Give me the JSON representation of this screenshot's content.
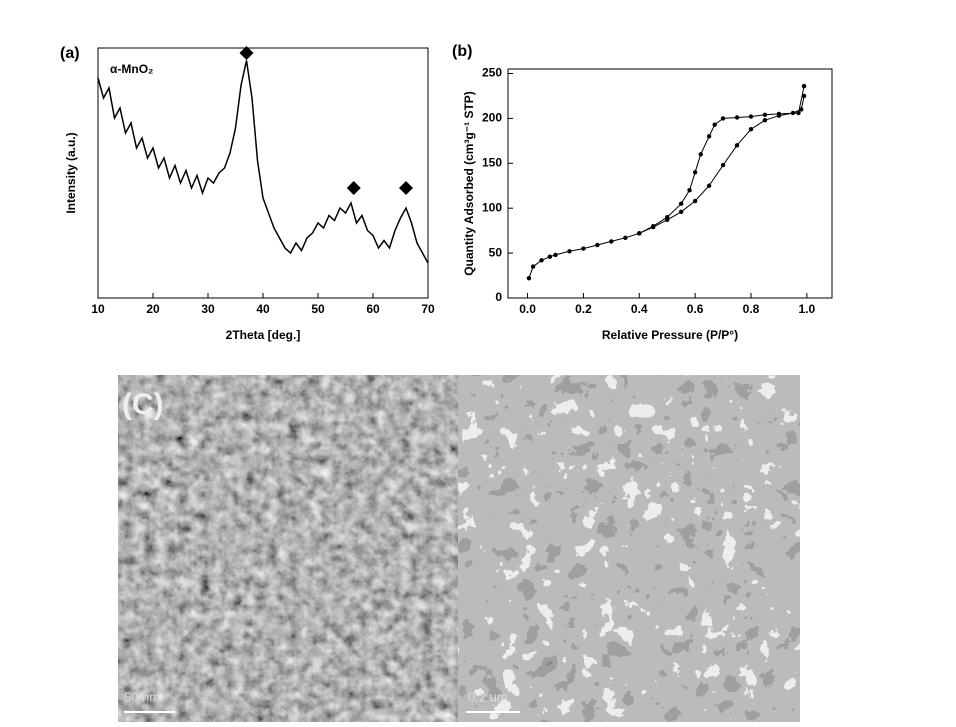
{
  "chart_data": [
    {
      "type": "line",
      "panel_label": "(a)",
      "annotation": "α-MnO₂",
      "x_label": "2Theta [deg.]",
      "y_label": "Intensity (a.u.)",
      "xlim": [
        10,
        70
      ],
      "xticks": [
        10,
        20,
        30,
        40,
        50,
        60,
        70
      ],
      "ylim": [
        0,
        100
      ],
      "markers": false,
      "series": [
        {
          "color": "#000000",
          "x": [
            10,
            11,
            12,
            13,
            14,
            15,
            16,
            17,
            18,
            19,
            20,
            21,
            22,
            23,
            24,
            25,
            26,
            27,
            28,
            29,
            30,
            31,
            32,
            33,
            34,
            35,
            36,
            37,
            38,
            39,
            40,
            41,
            42,
            43,
            44,
            45,
            46,
            47,
            48,
            49,
            50,
            51,
            52,
            53,
            54,
            55,
            56,
            57,
            58,
            59,
            60,
            61,
            62,
            63,
            64,
            65,
            66,
            67,
            68,
            69,
            70
          ],
          "values": [
            88,
            80,
            84,
            72,
            76,
            66,
            70,
            60,
            64,
            56,
            60,
            52,
            56,
            48,
            53,
            46,
            51,
            44,
            49,
            42,
            48,
            46,
            50,
            52,
            58,
            68,
            85,
            95,
            80,
            55,
            40,
            34,
            28,
            24,
            20,
            18,
            22,
            19,
            24,
            26,
            30,
            28,
            33,
            31,
            36,
            34,
            38,
            30,
            33,
            27,
            25,
            20,
            23,
            20,
            27,
            32,
            36,
            30,
            22,
            18,
            14
          ]
        }
      ],
      "peak_markers": {
        "x": [
          37,
          56.5,
          66
        ],
        "y": [
          98,
          44,
          44
        ]
      }
    },
    {
      "type": "line",
      "panel_label": "(b)",
      "x_label": "Relative Pressure (P/P°)",
      "y_label": "Quantity Adsorbed (cm³g⁻¹ STP)",
      "xlim": [
        -0.07,
        1.09
      ],
      "xticks": [
        {
          "value": 0,
          "label": "0.0"
        },
        0.2,
        0.4,
        0.6,
        0.8,
        {
          "value": 1,
          "label": "1.0"
        }
      ],
      "ylim": [
        0,
        255
      ],
      "yticks": [
        0,
        50,
        100,
        150,
        200,
        250
      ],
      "markers": true,
      "series": [
        {
          "color": "#000000",
          "x": [
            0.005,
            0.02,
            0.05,
            0.08,
            0.1,
            0.15,
            0.2,
            0.25,
            0.3,
            0.35,
            0.4,
            0.45,
            0.5,
            0.55,
            0.6,
            0.65,
            0.7,
            0.75,
            0.8,
            0.85,
            0.9,
            0.95,
            0.98,
            0.99
          ],
          "values": [
            22,
            35,
            42,
            46,
            48,
            52,
            55,
            59,
            63,
            67,
            72,
            79,
            87,
            96,
            108,
            125,
            148,
            170,
            188,
            198,
            203,
            206,
            210,
            225
          ]
        },
        {
          "color": "#000000",
          "x": [
            0.99,
            0.97,
            0.9,
            0.85,
            0.8,
            0.75,
            0.7,
            0.67,
            0.65,
            0.62,
            0.6,
            0.58,
            0.55,
            0.5,
            0.45,
            0.4
          ],
          "values": [
            236,
            206,
            205,
            204,
            202,
            201,
            200,
            193,
            180,
            160,
            140,
            120,
            105,
            90,
            80,
            72
          ]
        }
      ]
    }
  ],
  "images": {
    "panel_label": "(C)",
    "scale_bars": [
      "50 nm",
      "0.2 um"
    ]
  }
}
